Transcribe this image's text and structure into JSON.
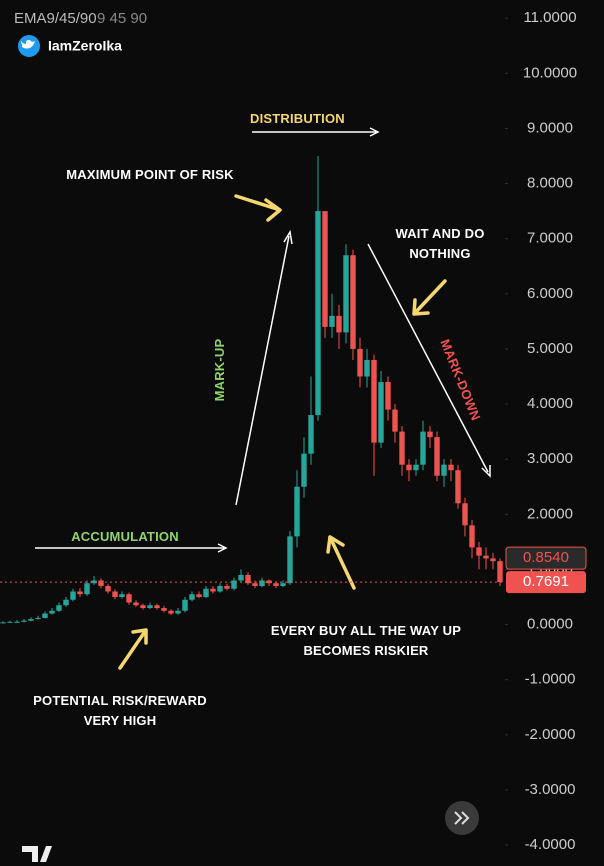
{
  "chart_data": {
    "type": "candlestick",
    "indicator": "EMA9/45/90",
    "indicator_params": "9 45 90",
    "handle": "IamZeroIka",
    "up_color": "#26a69a",
    "down_color": "#ef5350",
    "open": [
      0.03,
      0.04,
      0.05,
      0.05,
      0.07,
      0.1,
      0.12,
      0.2,
      0.25,
      0.35,
      0.45,
      0.6,
      0.55,
      0.75,
      0.8,
      0.7,
      0.6,
      0.5,
      0.55,
      0.4,
      0.35,
      0.3,
      0.35,
      0.3,
      0.25,
      0.2,
      0.25,
      0.45,
      0.55,
      0.5,
      0.65,
      0.6,
      0.7,
      0.65,
      0.8,
      0.9,
      0.75,
      0.7,
      0.8,
      0.75,
      0.7,
      0.75,
      1.6,
      2.5,
      3.1,
      3.8,
      7.5,
      5.4,
      5.6,
      5.3,
      6.7,
      5.0,
      4.5,
      4.8,
      3.3,
      4.4,
      3.9,
      3.5,
      2.9,
      2.8,
      2.9,
      3.5,
      3.4,
      2.7,
      2.9,
      2.8,
      2.2,
      1.8,
      1.4,
      1.25,
      1.2,
      1.15
    ],
    "high": [
      0.06,
      0.07,
      0.08,
      0.1,
      0.13,
      0.16,
      0.24,
      0.3,
      0.4,
      0.5,
      0.65,
      0.66,
      0.8,
      0.88,
      0.84,
      0.74,
      0.64,
      0.6,
      0.58,
      0.44,
      0.38,
      0.4,
      0.38,
      0.34,
      0.28,
      0.3,
      0.5,
      0.6,
      0.6,
      0.7,
      0.7,
      0.75,
      0.74,
      0.85,
      1.0,
      0.95,
      0.8,
      0.85,
      0.82,
      0.78,
      0.8,
      1.7,
      2.8,
      3.4,
      4.5,
      8.5,
      7.4,
      6.0,
      5.8,
      6.9,
      6.8,
      5.2,
      5.0,
      4.9,
      4.6,
      4.5,
      4.0,
      3.6,
      3.0,
      3.0,
      3.7,
      3.6,
      3.5,
      3.0,
      3.0,
      2.9,
      2.3,
      1.9,
      1.5,
      1.4,
      1.3,
      1.2
    ],
    "low": [
      0.02,
      0.03,
      0.04,
      0.04,
      0.06,
      0.09,
      0.11,
      0.18,
      0.23,
      0.32,
      0.42,
      0.5,
      0.52,
      0.72,
      0.66,
      0.56,
      0.46,
      0.47,
      0.36,
      0.32,
      0.27,
      0.28,
      0.27,
      0.22,
      0.17,
      0.18,
      0.22,
      0.42,
      0.48,
      0.48,
      0.56,
      0.58,
      0.62,
      0.62,
      0.76,
      0.72,
      0.66,
      0.68,
      0.7,
      0.66,
      0.68,
      0.72,
      1.4,
      2.3,
      2.9,
      3.7,
      5.2,
      5.2,
      5.0,
      5.1,
      4.8,
      4.3,
      4.3,
      2.7,
      3.2,
      3.7,
      3.3,
      2.7,
      2.6,
      2.7,
      2.8,
      3.2,
      2.6,
      2.5,
      2.6,
      2.1,
      1.6,
      1.2,
      1.0,
      1.0,
      1.0,
      0.7
    ],
    "close": [
      0.04,
      0.05,
      0.05,
      0.07,
      0.1,
      0.12,
      0.2,
      0.25,
      0.35,
      0.45,
      0.6,
      0.55,
      0.75,
      0.8,
      0.7,
      0.6,
      0.5,
      0.55,
      0.4,
      0.35,
      0.3,
      0.35,
      0.3,
      0.25,
      0.2,
      0.25,
      0.45,
      0.55,
      0.5,
      0.65,
      0.6,
      0.7,
      0.65,
      0.8,
      0.9,
      0.75,
      0.7,
      0.8,
      0.75,
      0.7,
      0.75,
      1.6,
      2.5,
      3.1,
      3.8,
      7.5,
      5.4,
      5.6,
      5.3,
      6.7,
      5.0,
      4.5,
      4.8,
      3.3,
      4.4,
      3.9,
      3.5,
      2.9,
      2.8,
      2.9,
      3.5,
      3.4,
      2.7,
      2.9,
      2.8,
      2.2,
      1.8,
      1.4,
      1.25,
      1.2,
      1.15,
      0.77
    ],
    "ylim": [
      -4.38,
      11.33
    ],
    "yticks": [
      {
        "value": -4,
        "label": "-4.0000"
      },
      {
        "value": -3,
        "label": "-3.0000"
      },
      {
        "value": -2,
        "label": "-2.0000"
      },
      {
        "value": -1,
        "label": "-1.0000"
      },
      {
        "value": 0,
        "label": "0.0000"
      },
      {
        "value": 1,
        "label": "1.0000"
      },
      {
        "value": 2,
        "label": "2.0000"
      },
      {
        "value": 3,
        "label": "3.0000"
      },
      {
        "value": 4,
        "label": "4.0000"
      },
      {
        "value": 5,
        "label": "5.0000"
      },
      {
        "value": 6,
        "label": "6.0000"
      },
      {
        "value": 7,
        "label": "7.0000"
      },
      {
        "value": 8,
        "label": "8.0000"
      },
      {
        "value": 9,
        "label": "9.0000"
      },
      {
        "value": 10,
        "label": "10.0000"
      },
      {
        "value": 11,
        "label": "11.0000"
      }
    ],
    "price_labels": [
      {
        "value": 0.854,
        "label": "0.8540",
        "color": "#2a2a2a"
      },
      {
        "value": 0.7691,
        "label": "0.7691",
        "color": "#ef5350"
      }
    ],
    "annotations": {
      "distribution": "DISTRIBUTION",
      "max_risk": "MAXIMUM POINT OF RISK",
      "wait": "WAIT AND DO NOTHING",
      "markup": "MARK-UP",
      "markdown": "MARK-DOWN",
      "accumulation": "ACCUMULATION",
      "every_buy": "EVERY BUY ALL THE WAY UP BECOMES RISKIER",
      "potential": "POTENTIAL RISK/REWARD VERY HIGH"
    }
  }
}
